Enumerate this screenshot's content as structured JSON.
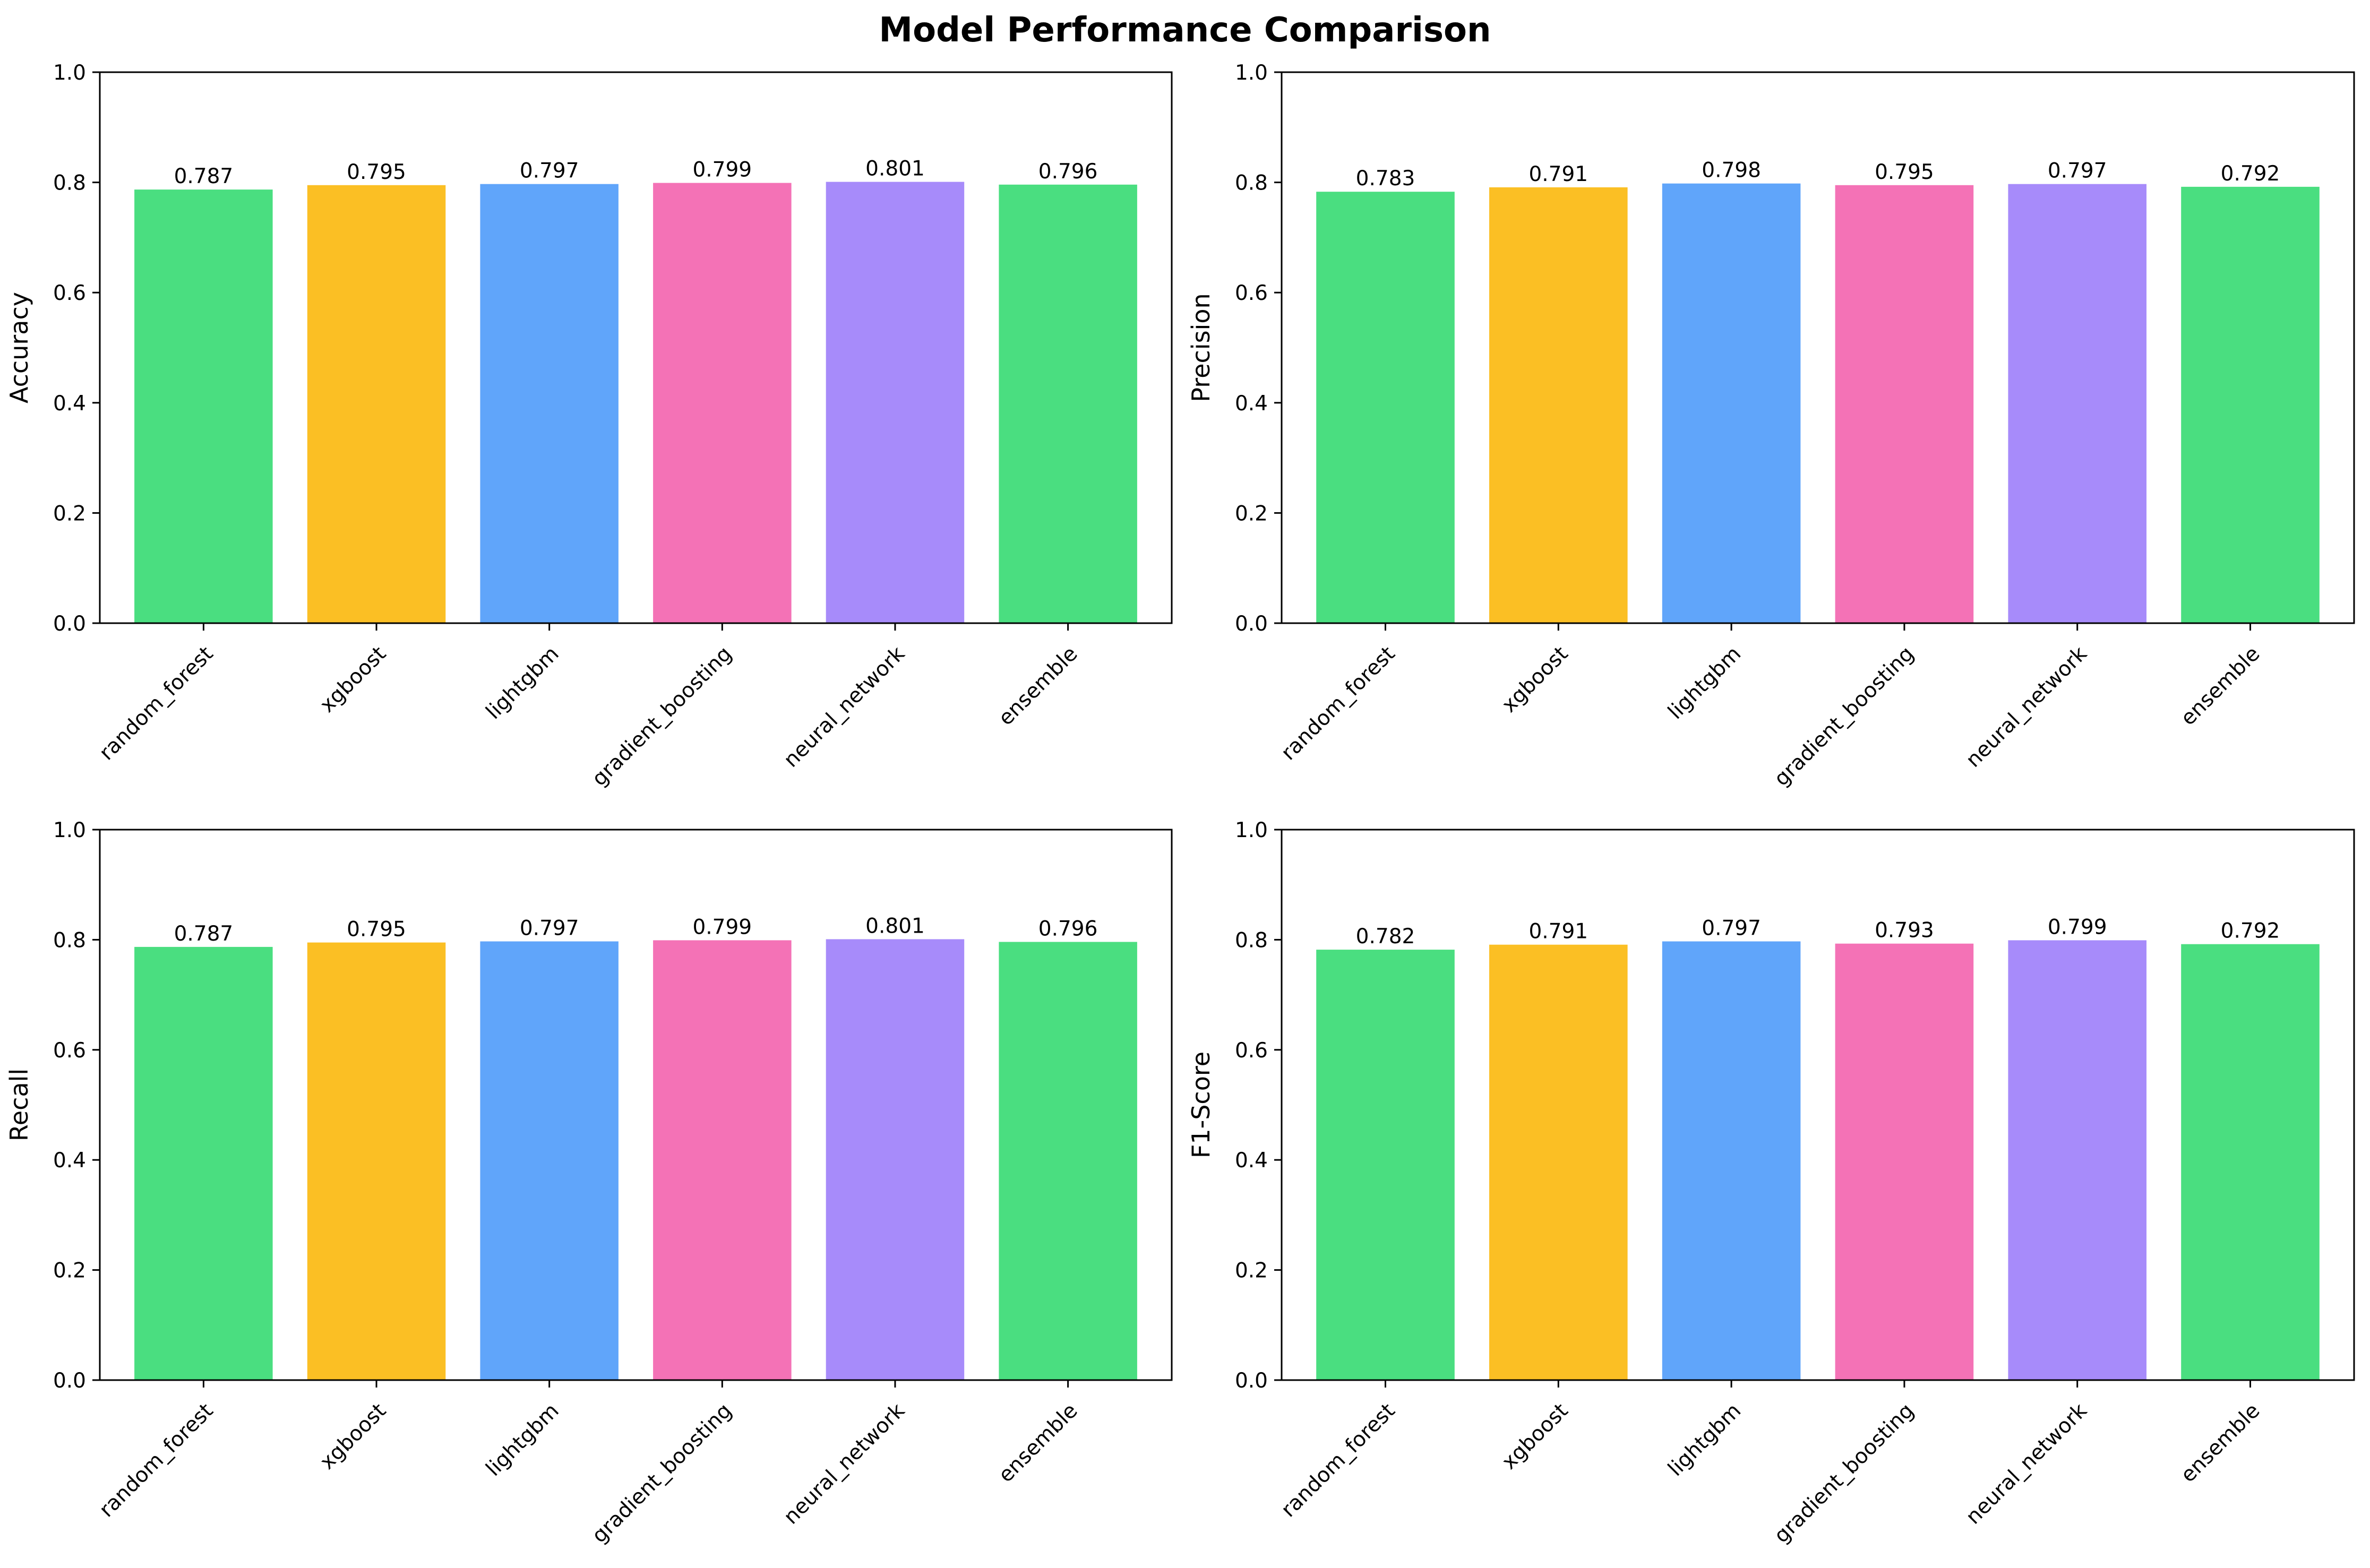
{
  "figure": {
    "title": "Model Performance Comparison"
  },
  "chart_data": [
    {
      "type": "bar",
      "categories": [
        "random_forest",
        "xgboost",
        "lightgbm",
        "gradient_boosting",
        "neural_network",
        "ensemble"
      ],
      "values": [
        0.787,
        0.795,
        0.797,
        0.799,
        0.801,
        0.796
      ],
      "value_labels": [
        "0.787",
        "0.795",
        "0.797",
        "0.799",
        "0.801",
        "0.796"
      ],
      "title": "",
      "xlabel": "",
      "ylabel": "Accuracy",
      "ylim": [
        0,
        1.0
      ],
      "yticks": [
        "0.0",
        "0.2",
        "0.4",
        "0.6",
        "0.8",
        "1.0"
      ],
      "grid": false
    },
    {
      "type": "bar",
      "categories": [
        "random_forest",
        "xgboost",
        "lightgbm",
        "gradient_boosting",
        "neural_network",
        "ensemble"
      ],
      "values": [
        0.783,
        0.791,
        0.798,
        0.795,
        0.797,
        0.792
      ],
      "value_labels": [
        "0.783",
        "0.791",
        "0.798",
        "0.795",
        "0.797",
        "0.792"
      ],
      "title": "",
      "xlabel": "",
      "ylabel": "Precision",
      "ylim": [
        0,
        1.0
      ],
      "yticks": [
        "0.0",
        "0.2",
        "0.4",
        "0.6",
        "0.8",
        "1.0"
      ],
      "grid": false
    },
    {
      "type": "bar",
      "categories": [
        "random_forest",
        "xgboost",
        "lightgbm",
        "gradient_boosting",
        "neural_network",
        "ensemble"
      ],
      "values": [
        0.787,
        0.795,
        0.797,
        0.799,
        0.801,
        0.796
      ],
      "value_labels": [
        "0.787",
        "0.795",
        "0.797",
        "0.799",
        "0.801",
        "0.796"
      ],
      "title": "",
      "xlabel": "",
      "ylabel": "Recall",
      "ylim": [
        0,
        1.0
      ],
      "yticks": [
        "0.0",
        "0.2",
        "0.4",
        "0.6",
        "0.8",
        "1.0"
      ],
      "grid": false
    },
    {
      "type": "bar",
      "categories": [
        "random_forest",
        "xgboost",
        "lightgbm",
        "gradient_boosting",
        "neural_network",
        "ensemble"
      ],
      "values": [
        0.782,
        0.791,
        0.797,
        0.793,
        0.799,
        0.792
      ],
      "value_labels": [
        "0.782",
        "0.791",
        "0.797",
        "0.793",
        "0.799",
        "0.792"
      ],
      "title": "",
      "xlabel": "",
      "ylabel": "F1-Score",
      "ylim": [
        0,
        1.0
      ],
      "yticks": [
        "0.0",
        "0.2",
        "0.4",
        "0.6",
        "0.8",
        "1.0"
      ],
      "grid": false
    }
  ],
  "bar_colors": [
    "#4ade80",
    "#fbbf24",
    "#60a5fa",
    "#f472b6",
    "#a78bfa",
    "#4ade80"
  ]
}
